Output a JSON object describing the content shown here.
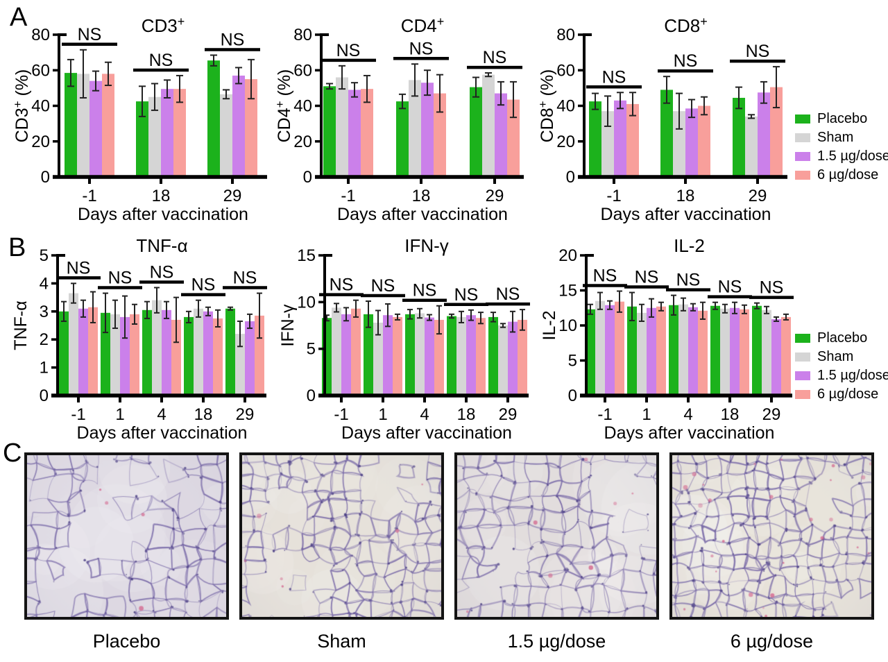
{
  "figure": {
    "panels": {
      "a": "A",
      "b": "B",
      "c": "C"
    }
  },
  "colors": {
    "placebo": "#1cb21c",
    "sham": "#d5d5d5",
    "dose_1_5": "#cb80ea",
    "dose_6": "#f89f9b",
    "axis": "#000000",
    "error_bar": "#222222"
  },
  "legend": {
    "items": [
      {
        "label": "Placebo",
        "color": "#1cb21c"
      },
      {
        "label": "Sham",
        "color": "#d5d5d5"
      },
      {
        "label": "1.5 µg/dose",
        "color": "#cb80ea"
      },
      {
        "label": "6 µg/dose",
        "color": "#f89f9b"
      }
    ]
  },
  "chart_data": [
    {
      "id": "cd3",
      "type": "bar",
      "title_main": "CD3",
      "title_sup": "+",
      "ylabel_main": "CD3",
      "ylabel_sup": "+",
      "ylabel_rest": " (%)",
      "xlabel": "Days after vaccination",
      "categories": [
        "-1",
        "18",
        "29"
      ],
      "ylim": [
        0,
        80
      ],
      "yticks": [
        0,
        20,
        40,
        60,
        80
      ],
      "ns_label": "NS",
      "series": [
        {
          "name": "Placebo",
          "values": [
            58.5,
            42.5,
            65.5
          ],
          "errors": [
            7.5,
            8.5,
            3
          ]
        },
        {
          "name": "Sham",
          "values": [
            58,
            45,
            46.5
          ],
          "errors": [
            13.5,
            7.5,
            2.5
          ]
        },
        {
          "name": "1.5 µg/dose",
          "values": [
            54,
            49.5,
            57
          ],
          "errors": [
            5.5,
            5,
            4.5
          ]
        },
        {
          "name": "6 µg/dose",
          "values": [
            58,
            49.5,
            55
          ],
          "errors": [
            6.5,
            7.5,
            11
          ]
        }
      ]
    },
    {
      "id": "cd4",
      "type": "bar",
      "title_main": "CD4",
      "title_sup": "+",
      "ylabel_main": "CD4",
      "ylabel_sup": "+",
      "ylabel_rest": " (%)",
      "xlabel": "Days after vaccination",
      "categories": [
        "-1",
        "18",
        "29"
      ],
      "ylim": [
        0,
        80
      ],
      "yticks": [
        0,
        20,
        40,
        60,
        80
      ],
      "ns_label": "NS",
      "series": [
        {
          "name": "Placebo",
          "values": [
            51,
            42.5,
            50.5
          ],
          "errors": [
            1.5,
            4,
            5.5
          ]
        },
        {
          "name": "Sham",
          "values": [
            56,
            54.5,
            57.5
          ],
          "errors": [
            6.5,
            9,
            1
          ]
        },
        {
          "name": "1.5 µg/dose",
          "values": [
            49,
            53,
            47
          ],
          "errors": [
            4,
            7,
            6.5
          ]
        },
        {
          "name": "6 µg/dose",
          "values": [
            49.5,
            47,
            43.5
          ],
          "errors": [
            7.5,
            10.5,
            10
          ]
        }
      ]
    },
    {
      "id": "cd8",
      "type": "bar",
      "title_main": "CD8",
      "title_sup": "+",
      "ylabel_main": "CD8",
      "ylabel_sup": "+",
      "ylabel_rest": " (%)",
      "xlabel": "Days after vaccination",
      "categories": [
        "-1",
        "18",
        "29"
      ],
      "ylim": [
        0,
        80
      ],
      "yticks": [
        0,
        20,
        40,
        60,
        80
      ],
      "ns_label": "NS",
      "series": [
        {
          "name": "Placebo",
          "values": [
            42.5,
            49,
            44.5
          ],
          "errors": [
            4.5,
            7.5,
            6
          ]
        },
        {
          "name": "Sham",
          "values": [
            37,
            37,
            34
          ],
          "errors": [
            8.5,
            10,
            1
          ]
        },
        {
          "name": "1.5 µg/dose",
          "values": [
            43,
            38.5,
            47.5
          ],
          "errors": [
            4.5,
            5,
            6
          ]
        },
        {
          "name": "6 µg/dose",
          "values": [
            41,
            40,
            50.5
          ],
          "errors": [
            6.5,
            5,
            11.5
          ]
        }
      ]
    },
    {
      "id": "tnf",
      "type": "bar",
      "title_main": "TNF-α",
      "title_sup": "",
      "ylabel_main": "TNF-α",
      "ylabel_sup": "",
      "ylabel_rest": "",
      "xlabel": "Days after vaccination",
      "categories": [
        "-1",
        "1",
        "4",
        "18",
        "29"
      ],
      "ylim": [
        0,
        5
      ],
      "yticks": [
        0,
        1,
        2,
        3,
        4,
        5
      ],
      "ns_label": "NS",
      "series": [
        {
          "name": "Placebo",
          "values": [
            3.0,
            2.95,
            3.05,
            2.8,
            3.1
          ],
          "errors": [
            0.35,
            0.7,
            0.3,
            0.2,
            0.05
          ]
        },
        {
          "name": "Sham",
          "values": [
            3.65,
            2.9,
            3.4,
            3.1,
            2.2
          ],
          "errors": [
            0.35,
            0.5,
            0.45,
            0.3,
            0.45
          ]
        },
        {
          "name": "1.5 µg/dose",
          "values": [
            3.1,
            2.8,
            3.05,
            3.0,
            2.65
          ],
          "errors": [
            0.3,
            0.75,
            0.3,
            0.15,
            0.25
          ]
        },
        {
          "name": "6 µg/dose",
          "values": [
            3.15,
            2.9,
            2.7,
            2.75,
            2.85
          ],
          "errors": [
            0.55,
            0.35,
            0.8,
            0.3,
            0.8
          ]
        }
      ]
    },
    {
      "id": "ifn",
      "type": "bar",
      "title_main": "IFN-γ",
      "title_sup": "",
      "ylabel_main": "IFN-γ",
      "ylabel_sup": "",
      "ylabel_rest": "",
      "xlabel": "Days after vaccination",
      "categories": [
        "-1",
        "1",
        "4",
        "18",
        "29"
      ],
      "ylim": [
        0,
        15
      ],
      "yticks": [
        0,
        5,
        10,
        15
      ],
      "ns_label": "NS",
      "series": [
        {
          "name": "Placebo",
          "values": [
            8.3,
            8.7,
            8.7,
            8.5,
            8.4
          ],
          "errors": [
            0.3,
            1.4,
            0.5,
            0.2,
            0.5
          ]
        },
        {
          "name": "Sham",
          "values": [
            9.4,
            7.8,
            8.8,
            8.4,
            7.5
          ],
          "errors": [
            0.45,
            1.3,
            0.5,
            0.6,
            0.2
          ]
        },
        {
          "name": "1.5 µg/dose",
          "values": [
            8.7,
            8.6,
            8.35,
            8.6,
            7.9
          ],
          "errors": [
            0.7,
            1.2,
            0.3,
            0.55,
            1.1
          ]
        },
        {
          "name": "6 µg/dose",
          "values": [
            9.3,
            8.4,
            8.1,
            8.3,
            8.1
          ],
          "errors": [
            0.9,
            0.3,
            1.5,
            0.6,
            1.1
          ]
        }
      ]
    },
    {
      "id": "il2",
      "type": "bar",
      "title_main": "IL-2",
      "title_sup": "",
      "ylabel_main": "IL-2",
      "ylabel_sup": "",
      "ylabel_rest": "",
      "xlabel": "Days after vaccination",
      "categories": [
        "-1",
        "1",
        "4",
        "18",
        "29"
      ],
      "ylim": [
        0,
        20
      ],
      "yticks": [
        0,
        5,
        10,
        15,
        20
      ],
      "ns_label": "NS",
      "series": [
        {
          "name": "Placebo",
          "values": [
            12.3,
            12.7,
            12.9,
            12.8,
            12.8
          ],
          "errors": [
            0.7,
            2.0,
            1.4,
            0.5,
            0.4
          ]
        },
        {
          "name": "Sham",
          "values": [
            13.5,
            11.8,
            13.0,
            12.4,
            12.2
          ],
          "errors": [
            1.2,
            1.2,
            0.9,
            0.6,
            0.5
          ]
        },
        {
          "name": "1.5 µg/dose",
          "values": [
            12.9,
            12.5,
            12.6,
            12.5,
            10.9
          ],
          "errors": [
            0.6,
            1.3,
            0.5,
            0.8,
            0.3
          ]
        },
        {
          "name": "6 µg/dose",
          "values": [
            13.4,
            12.7,
            12.1,
            12.3,
            11.2
          ],
          "errors": [
            1.5,
            0.6,
            1.2,
            0.6,
            0.4
          ]
        }
      ]
    }
  ],
  "histology": {
    "panels": [
      {
        "label": "Placebo"
      },
      {
        "label": "Sham"
      },
      {
        "label": "1.5 µg/dose"
      },
      {
        "label": "6 µg/dose"
      }
    ]
  }
}
